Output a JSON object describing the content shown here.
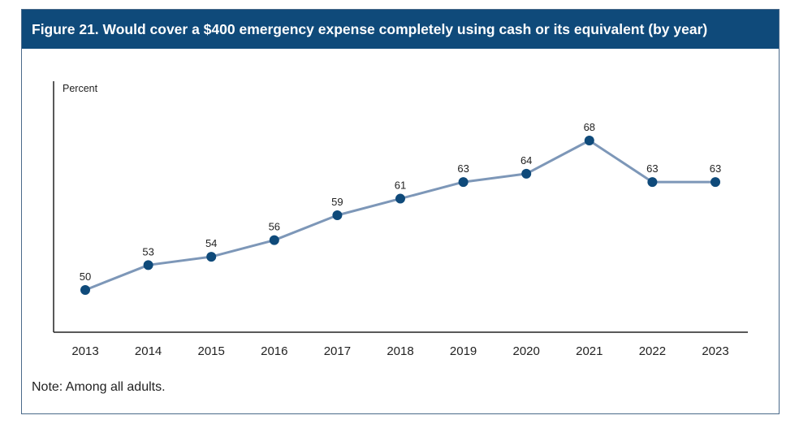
{
  "figure": {
    "title": "Figure 21. Would cover a $400 emergency expense completely using cash or its equivalent (by year)",
    "note": "Note: Among all adults."
  },
  "colors": {
    "title_bar": "#0f4a7a",
    "line": "#7d97b8",
    "marker": "#0f4a7a",
    "axis": "#222222"
  },
  "chart_data": {
    "type": "line",
    "title": "Figure 21. Would cover a $400 emergency expense completely using cash or its equivalent (by year)",
    "xlabel": "",
    "ylabel": "Percent",
    "categories": [
      "2013",
      "2014",
      "2015",
      "2016",
      "2017",
      "2018",
      "2019",
      "2020",
      "2021",
      "2022",
      "2023"
    ],
    "series": [
      {
        "name": "Would cover a $400 emergency expense completely using cash or its equivalent",
        "values": [
          50,
          53,
          54,
          56,
          59,
          61,
          63,
          64,
          68,
          63,
          63
        ]
      }
    ],
    "grid": false,
    "data_labels": true
  }
}
